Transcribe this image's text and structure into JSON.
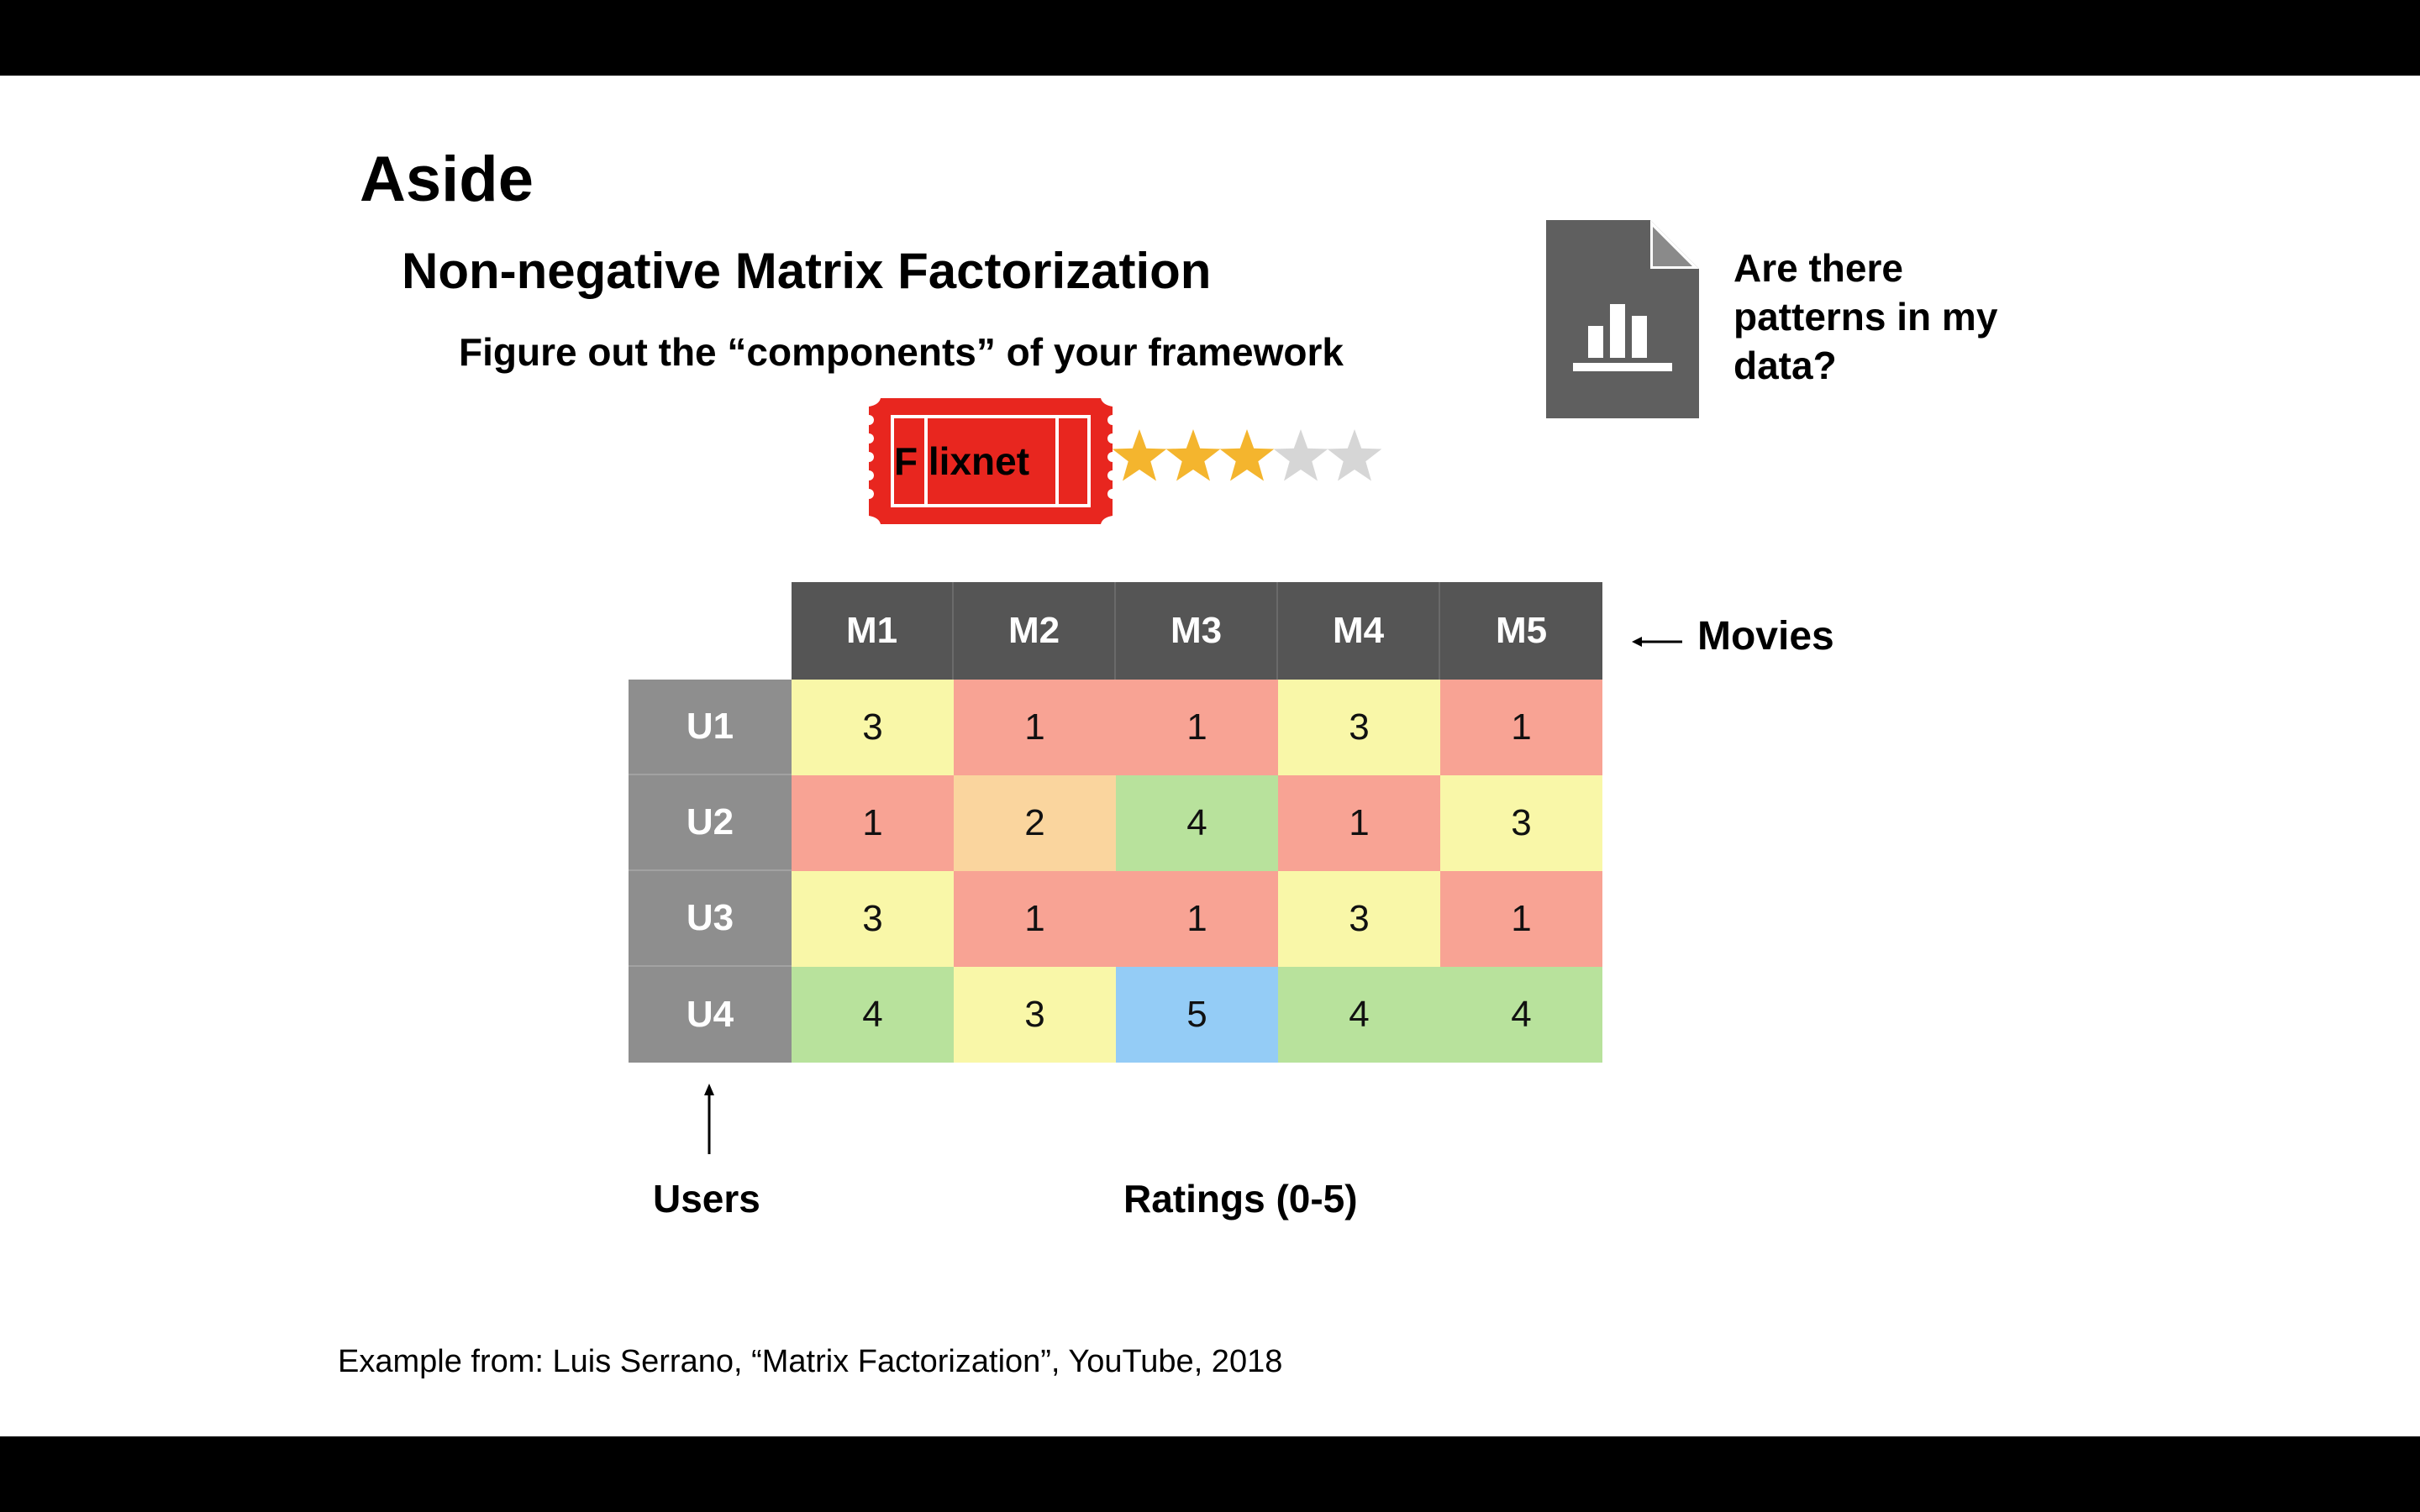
{
  "slide": {
    "title": "Aside",
    "subtitle": "Non-negative Matrix Factorization",
    "tagline": "Figure out the “components” of your framework",
    "question": "Are there patterns in my data?",
    "question_lines": [
      "Are there",
      "patterns in my",
      "data?"
    ],
    "ticket_text": "F lixnet",
    "star_rating": 3,
    "star_max": 5,
    "movies_label": "Movies",
    "users_label": "Users",
    "ratings_label": "Ratings (0-5)",
    "credit": "Example from: Luis Serrano, “Matrix Factorization”, YouTube, 2018"
  },
  "icons": {
    "document": "document-chart-icon",
    "ticket": "ticket-icon",
    "star": "star-icon",
    "arrow_left": "arrow-left-icon",
    "arrow_up": "arrow-up-icon"
  },
  "colors": {
    "header": "#555555",
    "row_header": "#8E8E8E",
    "rating_1": "#F8A394",
    "rating_2": "#FAD59E",
    "rating_3": "#F9F7A8",
    "rating_4": "#B8E29C",
    "rating_5": "#94CCF6",
    "ticket": "#E8261F",
    "star_on": "#F4B52E",
    "star_off": "#D6D6D6",
    "doc_icon": "#5F5F5F"
  },
  "table": {
    "movies": [
      "M1",
      "M2",
      "M3",
      "M4",
      "M5"
    ],
    "users": [
      "U1",
      "U2",
      "U3",
      "U4"
    ],
    "ratings": [
      [
        3,
        1,
        1,
        3,
        1
      ],
      [
        1,
        2,
        4,
        1,
        3
      ],
      [
        3,
        1,
        1,
        3,
        1
      ],
      [
        4,
        3,
        5,
        4,
        4
      ]
    ]
  }
}
